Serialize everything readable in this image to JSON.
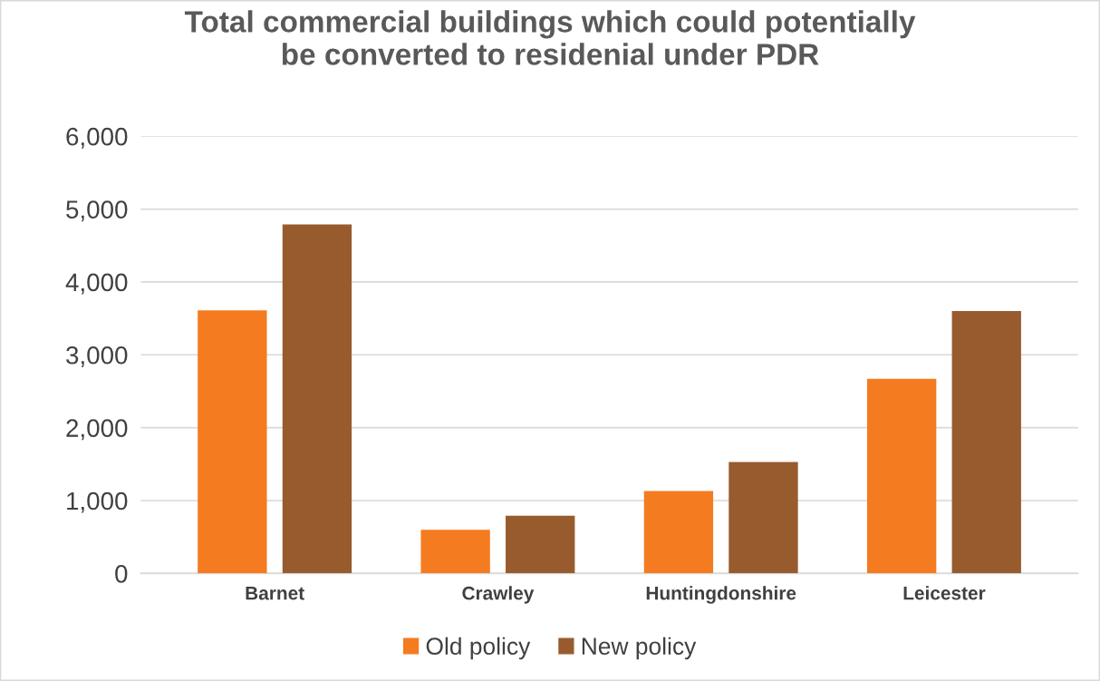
{
  "chart_data": {
    "type": "bar",
    "title": "Total commercial buildings which could potentially\nbe converted to residenial under PDR",
    "categories": [
      "Barnet",
      "Crawley",
      "Huntingdonshire",
      "Leicester"
    ],
    "series": [
      {
        "name": "Old policy",
        "color": "#f47b20",
        "values": [
          3610,
          600,
          1130,
          2670
        ]
      },
      {
        "name": "New policy",
        "color": "#975b2e",
        "values": [
          4790,
          790,
          1530,
          3600
        ]
      }
    ],
    "ylim": [
      0,
      6000
    ],
    "yticks": [
      {
        "value": 0,
        "label": "0"
      },
      {
        "value": 1000,
        "label": "1,000"
      },
      {
        "value": 2000,
        "label": "2,000"
      },
      {
        "value": 3000,
        "label": "3,000"
      },
      {
        "value": 4000,
        "label": "4,000"
      },
      {
        "value": 5000,
        "label": "5,000"
      },
      {
        "value": 6000,
        "label": "6,000"
      }
    ],
    "grid": "y",
    "legend": "bottom"
  }
}
